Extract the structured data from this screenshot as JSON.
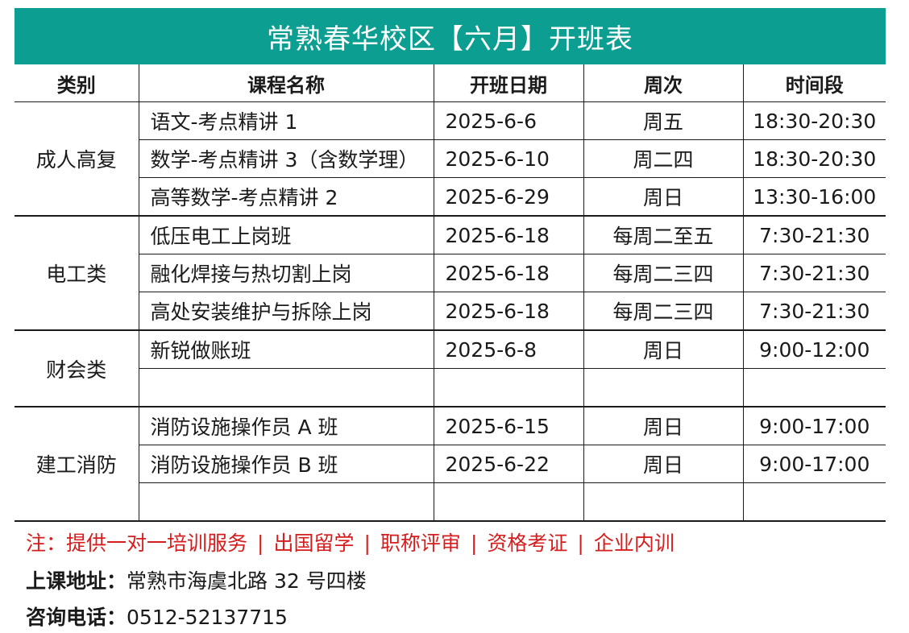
{
  "title": "常熟春华校区【六月】开班表",
  "headers": [
    "类别",
    "课程名称",
    "开班日期",
    "周次",
    "时间段"
  ],
  "groups": [
    {
      "category": "成人高复",
      "rows": [
        {
          "name": "语文-考点精讲 1",
          "date": "2025-6-6",
          "week": "周五",
          "time": "18:30-20:30"
        },
        {
          "name": "数学-考点精讲 3（含数学理）",
          "date": "2025-6-10",
          "week": "周二四",
          "time": "18:30-20:30"
        },
        {
          "name": "高等数学-考点精讲 2",
          "date": "2025-6-29",
          "week": "周日",
          "time": "13:30-16:00"
        }
      ]
    },
    {
      "category": "电工类",
      "rows": [
        {
          "name": "低压电工上岗班",
          "date": "2025-6-18",
          "week": "每周二至五",
          "time": "7:30-21:30"
        },
        {
          "name": "融化焊接与热切割上岗",
          "date": "2025-6-18",
          "week": "每周二三四",
          "time": "7:30-21:30"
        },
        {
          "name": "高处安装维护与拆除上岗",
          "date": "2025-6-18",
          "week": "每周二三四",
          "time": "7:30-21:30"
        }
      ]
    },
    {
      "category": "财会类",
      "rows": [
        {
          "name": "新锐做账班",
          "date": "2025-6-8",
          "week": "周日",
          "time": "9:00-12:00"
        },
        {
          "name": "",
          "date": "",
          "week": "",
          "time": ""
        }
      ]
    },
    {
      "category": "建工消防",
      "rows": [
        {
          "name": "消防设施操作员 A 班",
          "date": "2025-6-15",
          "week": "周日",
          "time": "9:00-17:00"
        },
        {
          "name": "消防设施操作员 B 班",
          "date": "2025-6-22",
          "week": "周日",
          "time": "9:00-17:00"
        },
        {
          "name": "",
          "date": "",
          "week": "",
          "time": ""
        }
      ]
    }
  ],
  "note": {
    "prefix": "注：",
    "items": [
      "提供一对一培训服务",
      "出国留学",
      "职称评审",
      "资格考证",
      "企业内训"
    ],
    "separator": "|"
  },
  "address": {
    "label": "上课地址：",
    "value": "常熟市海虞北路 32 号四楼"
  },
  "phone": {
    "label": "咨询电话：",
    "value": "0512-52137715"
  },
  "colors": {
    "banner": "#0d9e92",
    "note": "#d61d1d",
    "text": "#1a1a1a"
  }
}
